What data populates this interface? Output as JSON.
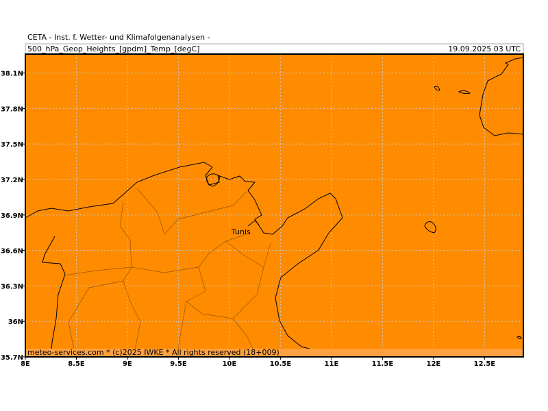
{
  "header": {
    "title": "CETA - Inst. f. Wetter- und Klimafolgenanalysen -",
    "field": "500_hPa_Geop_Heights_[gpdm]_Temp_[degC]",
    "valid_time": "19.09.2025 03 UTC"
  },
  "map": {
    "lon_range": [
      8,
      12.88
    ],
    "lat_range": [
      35.7,
      38.26
    ],
    "lon_ticks": [
      {
        "value": 8,
        "label": "8E"
      },
      {
        "value": 8.5,
        "label": "8.5E"
      },
      {
        "value": 9,
        "label": "9E"
      },
      {
        "value": 9.5,
        "label": "9.5E"
      },
      {
        "value": 10,
        "label": "10E"
      },
      {
        "value": 10.5,
        "label": "10.5E"
      },
      {
        "value": 11,
        "label": "11E"
      },
      {
        "value": 11.5,
        "label": "11.5E"
      },
      {
        "value": 12,
        "label": "12E"
      },
      {
        "value": 12.5,
        "label": "12.5E"
      }
    ],
    "lat_ticks": [
      {
        "value": 35.7,
        "label": "35.7N"
      },
      {
        "value": 36,
        "label": "36N"
      },
      {
        "value": 36.3,
        "label": "36.3N"
      },
      {
        "value": 36.6,
        "label": "36.6N"
      },
      {
        "value": 36.9,
        "label": "36.9N"
      },
      {
        "value": 37.2,
        "label": "37.2N"
      },
      {
        "value": 37.5,
        "label": "37.5N"
      },
      {
        "value": 37.8,
        "label": "37.8N"
      },
      {
        "value": 38.1,
        "label": "38.1N"
      }
    ],
    "places": [
      {
        "label": "Tunis"
      }
    ],
    "footer": "meteo-services.com * (c)2025 IWKE * All rights reserved (18+009)"
  }
}
